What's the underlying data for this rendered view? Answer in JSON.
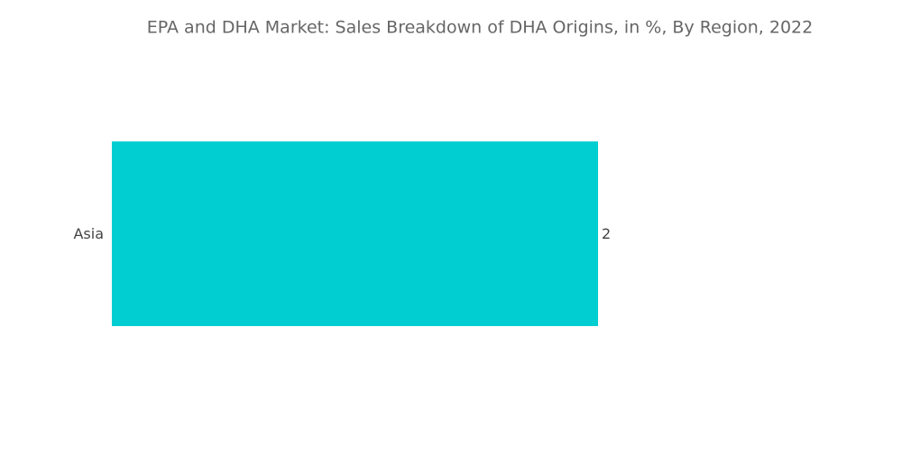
{
  "chart_data": {
    "type": "bar",
    "orientation": "horizontal",
    "title": "EPA and DHA Market: Sales Breakdown of DHA Origins, in %, By Region, 2022",
    "categories": [
      "Asia"
    ],
    "values": [
      2
    ],
    "color": "#00ced1"
  }
}
